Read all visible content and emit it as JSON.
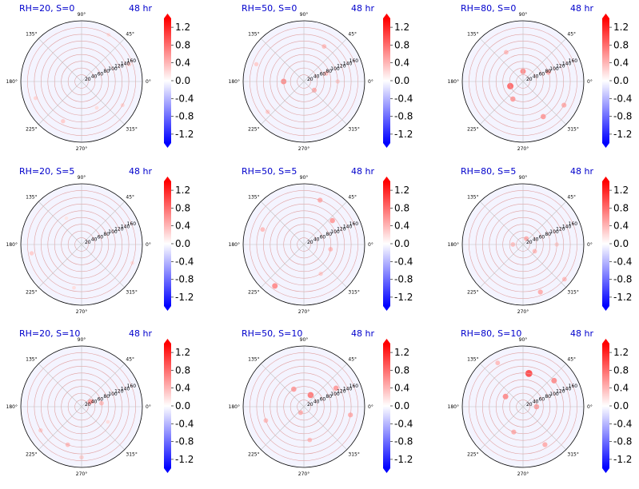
{
  "figure": {
    "background": "#ffffff",
    "title_color": "#0000cc",
    "panel_background": "#f4f4ff",
    "grid_color": "#e0a0a0",
    "spoke_color": "#c0c0c0"
  },
  "chart_data": {
    "type": "heatmap",
    "projection": "polar",
    "angle_ticks": [
      "0°",
      "45°",
      "90°",
      "135°",
      "180°",
      "225°",
      "270°",
      "315°"
    ],
    "radial_ticks": [
      "20",
      "40",
      "60",
      "80",
      "100",
      "120",
      "140",
      "160"
    ],
    "radial_values": [
      20,
      40,
      60,
      80,
      100,
      120,
      140,
      160
    ],
    "rlim": [
      0,
      180
    ],
    "colorbar": {
      "cmap": "bwr",
      "range": [
        -1.4,
        1.4
      ],
      "extend": "both",
      "ticks": [
        "1.2",
        "0.8",
        "0.4",
        "0.0",
        "-0.4",
        "-0.8",
        "-1.2"
      ],
      "tick_values": [
        1.2,
        0.8,
        0.4,
        0.0,
        -0.4,
        -0.8,
        -1.2
      ]
    },
    "panels": [
      {
        "title": "RH=20, S=0",
        "time": "48 hr",
        "features": [
          {
            "r": 150,
            "theta": 20,
            "value": 0.3
          },
          {
            "r": 145,
            "theta": 200,
            "value": 0.25
          },
          {
            "r": 130,
            "theta": 245,
            "value": 0.3
          },
          {
            "r": 90,
            "theta": 300,
            "value": 0.2
          },
          {
            "r": 160,
            "theta": 60,
            "value": 0.2
          },
          {
            "r": 140,
            "theta": 330,
            "value": 0.25
          }
        ]
      },
      {
        "title": "RH=50, S=0",
        "time": "48 hr",
        "features": [
          {
            "r": 60,
            "theta": 180,
            "value": 0.7
          },
          {
            "r": 40,
            "theta": 320,
            "value": 0.5
          },
          {
            "r": 120,
            "theta": 60,
            "value": 0.4
          },
          {
            "r": 150,
            "theta": 160,
            "value": 0.3
          },
          {
            "r": 100,
            "theta": 0,
            "value": 0.3
          },
          {
            "r": 140,
            "theta": 220,
            "value": 0.3
          },
          {
            "r": 70,
            "theta": 20,
            "value": 0.4
          }
        ]
      },
      {
        "title": "RH=80, S=0",
        "time": "48 hr",
        "features": [
          {
            "r": 40,
            "theta": 200,
            "value": 0.9
          },
          {
            "r": 30,
            "theta": 90,
            "value": 0.7
          },
          {
            "r": 60,
            "theta": 240,
            "value": 0.6
          },
          {
            "r": 120,
            "theta": 300,
            "value": 0.6
          },
          {
            "r": 140,
            "theta": 330,
            "value": 0.5
          },
          {
            "r": 80,
            "theta": 20,
            "value": 0.5
          },
          {
            "r": 100,
            "theta": 120,
            "value": 0.4
          }
        ]
      },
      {
        "title": "RH=20, S=5",
        "time": "48 hr",
        "features": [
          {
            "r": 150,
            "theta": 190,
            "value": 0.3
          },
          {
            "r": 160,
            "theta": 340,
            "value": 0.2
          },
          {
            "r": 130,
            "theta": 260,
            "value": 0.2
          },
          {
            "r": 90,
            "theta": 120,
            "value": 0.15
          }
        ]
      },
      {
        "title": "RH=50, S=5",
        "time": "48 hr",
        "features": [
          {
            "r": 110,
            "theta": 40,
            "value": 0.6
          },
          {
            "r": 150,
            "theta": 235,
            "value": 0.7
          },
          {
            "r": 130,
            "theta": 160,
            "value": 0.4
          },
          {
            "r": 80,
            "theta": 350,
            "value": 0.4
          },
          {
            "r": 140,
            "theta": 70,
            "value": 0.5
          },
          {
            "r": 100,
            "theta": 300,
            "value": 0.3
          }
        ]
      },
      {
        "title": "RH=80, S=5",
        "time": "48 hr",
        "features": [
          {
            "r": 20,
            "theta": 60,
            "value": 0.5
          },
          {
            "r": 30,
            "theta": 180,
            "value": 0.4
          },
          {
            "r": 150,
            "theta": 290,
            "value": 0.5
          },
          {
            "r": 160,
            "theta": 320,
            "value": 0.4
          },
          {
            "r": 100,
            "theta": 0,
            "value": 0.3
          },
          {
            "r": 40,
            "theta": 330,
            "value": 0.4
          }
        ]
      },
      {
        "title": "RH=20, S=10",
        "time": "48 hr",
        "features": [
          {
            "r": 30,
            "theta": 30,
            "value": 0.6
          },
          {
            "r": 60,
            "theta": 10,
            "value": 0.4
          },
          {
            "r": 120,
            "theta": 250,
            "value": 0.4
          },
          {
            "r": 150,
            "theta": 270,
            "value": 0.3
          },
          {
            "r": 140,
            "theta": 210,
            "value": 0.3
          },
          {
            "r": 90,
            "theta": 330,
            "value": 0.2
          }
        ]
      },
      {
        "title": "RH=50, S=10",
        "time": "48 hr",
        "features": [
          {
            "r": 40,
            "theta": 60,
            "value": 0.8
          },
          {
            "r": 60,
            "theta": 120,
            "value": 0.6
          },
          {
            "r": 110,
            "theta": 30,
            "value": 0.6
          },
          {
            "r": 140,
            "theta": 350,
            "value": 0.5
          },
          {
            "r": 120,
            "theta": 200,
            "value": 0.4
          },
          {
            "r": 100,
            "theta": 280,
            "value": 0.4
          },
          {
            "r": 20,
            "theta": 240,
            "value": 0.5
          }
        ]
      },
      {
        "title": "RH=80, S=10",
        "time": "48 hr",
        "features": [
          {
            "r": 100,
            "theta": 80,
            "value": 1.1
          },
          {
            "r": 60,
            "theta": 150,
            "value": 0.7
          },
          {
            "r": 120,
            "theta": 40,
            "value": 0.7
          },
          {
            "r": 80,
            "theta": 250,
            "value": 0.5
          },
          {
            "r": 130,
            "theta": 300,
            "value": 0.5
          },
          {
            "r": 40,
            "theta": 0,
            "value": 0.6
          },
          {
            "r": 150,
            "theta": 120,
            "value": 0.4
          }
        ]
      }
    ]
  }
}
